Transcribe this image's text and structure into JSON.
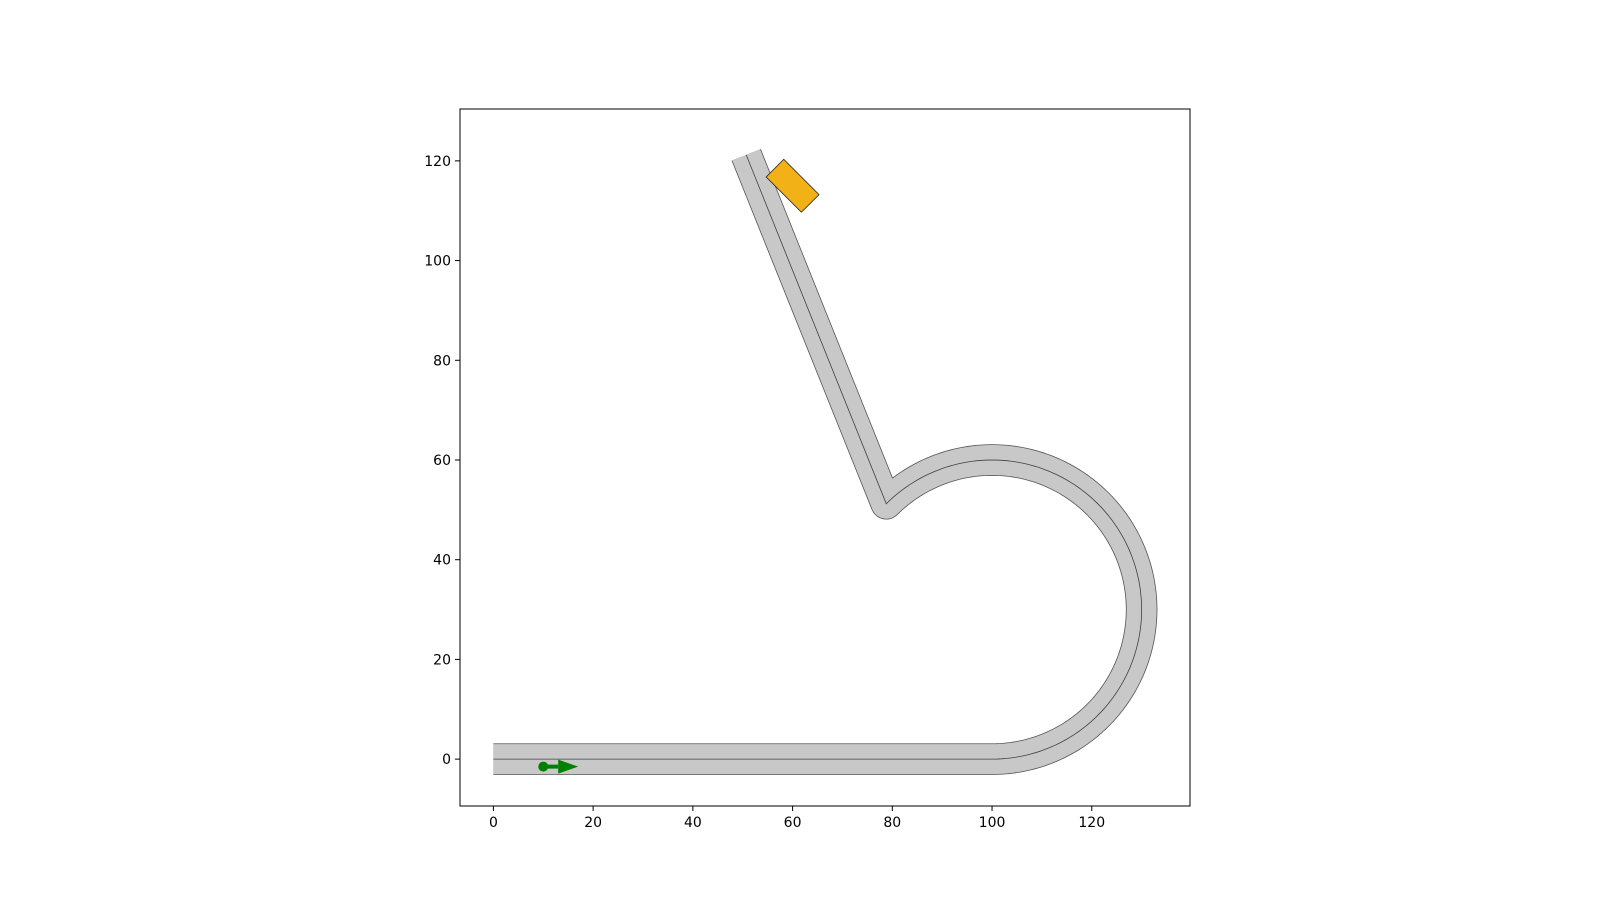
{
  "chart_data": {
    "type": "scenario-map",
    "xlim": [
      -6.7,
      139.7
    ],
    "ylim": [
      -9.4,
      130.4
    ],
    "xticks": [
      0,
      20,
      40,
      60,
      80,
      100,
      120
    ],
    "yticks": [
      0,
      20,
      40,
      60,
      80,
      100,
      120
    ],
    "grid": false,
    "road": {
      "lane_width": 6,
      "centerline": {
        "straight_start": [
          0,
          0
        ],
        "straight_end": [
          100,
          0
        ],
        "arc_center": [
          100,
          30
        ],
        "arc_radius": 30,
        "arc_from_deg": -90,
        "arc_to_deg": 135,
        "diagonal_end": [
          50.7,
          121.2
        ]
      },
      "fill_color": "#c8c8c8",
      "edge_color": "#555555",
      "centerline_color": "#404040"
    },
    "ego_vehicle": {
      "position": [
        10,
        -1.5
      ],
      "heading_deg": 0,
      "arrow_length": 7,
      "color": "#008000"
    },
    "obstacle_vehicle": {
      "position": [
        60,
        115
      ],
      "heading_deg": 135,
      "length": 10,
      "width": 5,
      "fill": "#f2b217",
      "edge": "#222222"
    }
  }
}
